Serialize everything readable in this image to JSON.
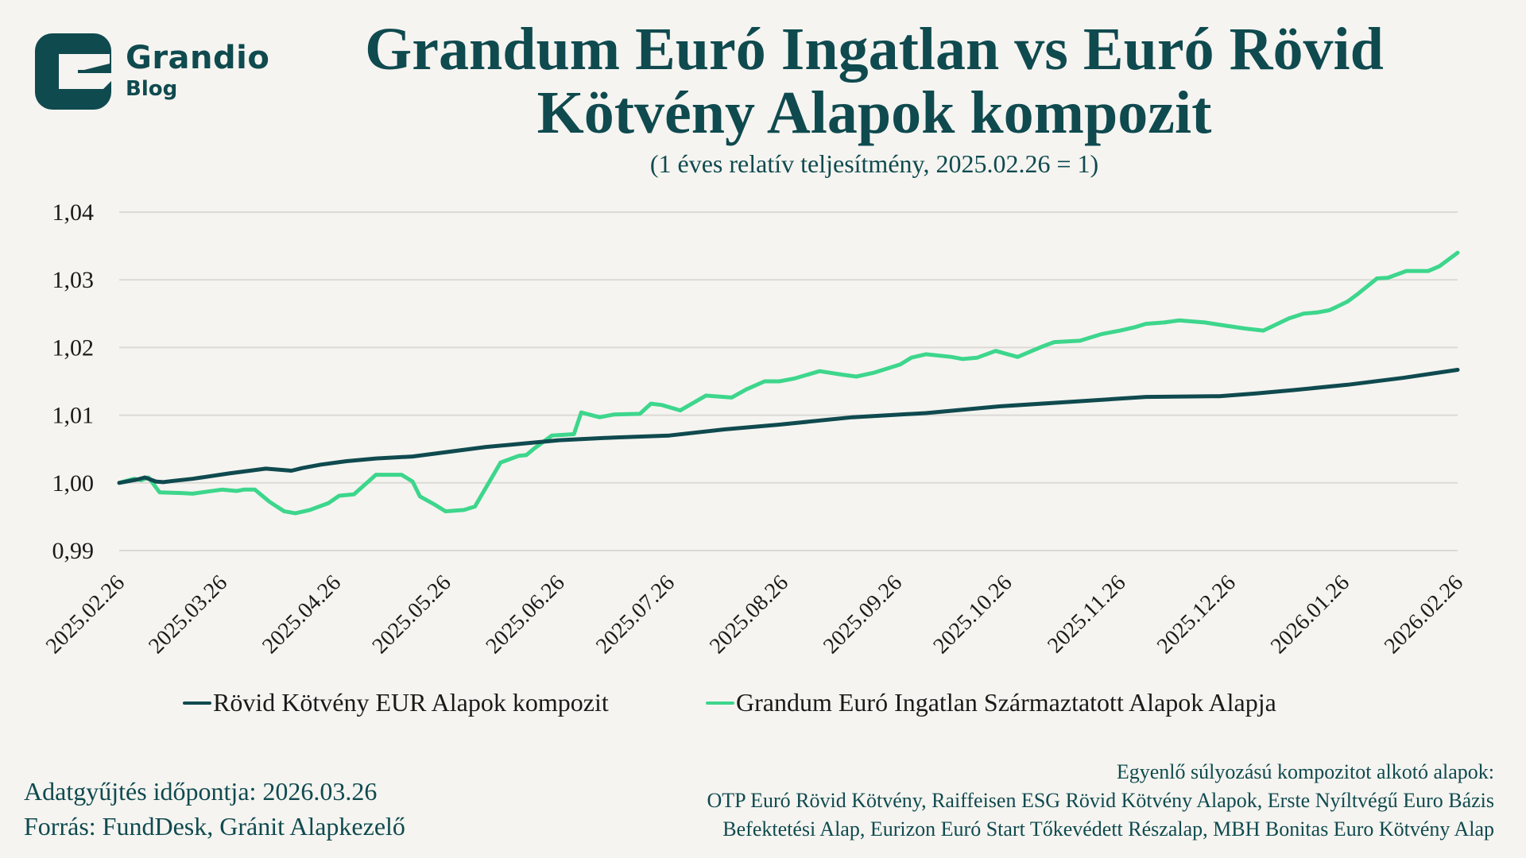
{
  "logo": {
    "name": "Grandio",
    "sub": "Blog",
    "icon": "grandio-g-logo"
  },
  "footer": {
    "collection_date": "Adatgyűjtés időpontja: 2026.03.26",
    "source": "Forrás: FundDesk, Gránit Alapkezelő",
    "composite_heading": "Egyenlő súlyozású kompozitot alkotó alapok:",
    "composite_line1": "OTP Euró Rövid Kötvény, Raiffeisen ESG Rövid Kötvény Alapok, Erste Nyíltvégű Euro Bázis",
    "composite_line2": "Befektetési Alap, Eurizon Euró Start Tőkevédett Részalap, MBH Bonitas Euro Kötvény Alap"
  },
  "chart_data": {
    "type": "line",
    "title_line1": "Grandum Euró Ingatlan vs Euró Rövid",
    "title_line2": "Kötvény Alapok kompozit",
    "subtitle": "(1 éves relatív teljesítmény, 2025.02.26 = 1)",
    "xlabel": "",
    "ylabel": "",
    "x_unit": "days since 2025.02.26",
    "x_range": [
      0,
      365
    ],
    "ylim": [
      0.99,
      1.04
    ],
    "yticks": [
      0.99,
      1.0,
      1.01,
      1.02,
      1.03,
      1.04
    ],
    "ytick_labels": [
      "0,99",
      "1,00",
      "1,01",
      "1,02",
      "1,03",
      "1,04"
    ],
    "xticks": [
      0,
      28,
      59,
      89,
      120,
      150,
      181,
      212,
      242,
      273,
      303,
      334,
      365
    ],
    "xtick_labels": [
      "2025.02.26",
      "2025.03.26",
      "2025.04.26",
      "2025.05.26",
      "2025.06.26",
      "2025.07.26",
      "2025.08.26",
      "2025.09.26",
      "2025.10.26",
      "2025.11.26",
      "2025.12.26",
      "2026.01.26",
      "2026.02.26"
    ],
    "grid": true,
    "legend_position": "bottom",
    "series": [
      {
        "name": "Rövid Kötvény EUR Alapok kompozit",
        "color": "#0f4a4f",
        "x": [
          0,
          5,
          7,
          8,
          10,
          12,
          15,
          20,
          30,
          40,
          47,
          50,
          55,
          62,
          70,
          80,
          90,
          100,
          110,
          120,
          135,
          150,
          165,
          180,
          200,
          220,
          240,
          260,
          280,
          300,
          310,
          320,
          335,
          350,
          365
        ],
        "values": [
          1.0,
          1.0005,
          1.0008,
          1.0006,
          1.0002,
          1.0001,
          1.0003,
          1.0006,
          1.0014,
          1.0021,
          1.0018,
          1.0022,
          1.0027,
          1.0032,
          1.0036,
          1.0039,
          1.0046,
          1.0053,
          1.0058,
          1.0063,
          1.0067,
          1.007,
          1.0079,
          1.0086,
          1.0097,
          1.0103,
          1.0113,
          1.012,
          1.0127,
          1.0128,
          1.0132,
          1.0137,
          1.0145,
          1.0155,
          1.0167
        ]
      },
      {
        "name": "Grandum Euró Ingatlan Származtatott Alapok Alapja",
        "color": "#3dd68c",
        "x": [
          0,
          4,
          6,
          8,
          11,
          17,
          20,
          28,
          32,
          34,
          37,
          41,
          45,
          48,
          52,
          57,
          60,
          64,
          70,
          77,
          80,
          82,
          86,
          89,
          94,
          97,
          104,
          109,
          111,
          113,
          118,
          124,
          126,
          131,
          135,
          142,
          145,
          148,
          153,
          160,
          167,
          171,
          176,
          180,
          184,
          191,
          197,
          201,
          206,
          213,
          216,
          220,
          227,
          230,
          234,
          239,
          245,
          248,
          252,
          255,
          262,
          268,
          273,
          277,
          280,
          285,
          289,
          296,
          302,
          307,
          312,
          319,
          323,
          327,
          330,
          332,
          335,
          338,
          343,
          346,
          351,
          357,
          360,
          365
        ],
        "values": [
          1.0,
          1.0006,
          1.0004,
          1.0008,
          0.9986,
          0.9985,
          0.9984,
          0.999,
          0.9988,
          0.999,
          0.999,
          0.9972,
          0.9958,
          0.9955,
          0.996,
          0.997,
          0.9981,
          0.9983,
          1.0012,
          1.0012,
          1.0002,
          0.998,
          0.9968,
          0.9958,
          0.996,
          0.9965,
          1.003,
          1.004,
          1.0041,
          1.005,
          1.007,
          1.0072,
          1.0104,
          1.0097,
          1.0101,
          1.0102,
          1.0117,
          1.0115,
          1.0107,
          1.0129,
          1.0126,
          1.0138,
          1.015,
          1.015,
          1.0154,
          1.0165,
          1.016,
          1.0157,
          1.0163,
          1.0175,
          1.0185,
          1.019,
          1.0186,
          1.0183,
          1.0185,
          1.0195,
          1.0186,
          1.0193,
          1.0202,
          1.0208,
          1.021,
          1.022,
          1.0225,
          1.023,
          1.0235,
          1.0237,
          1.024,
          1.0237,
          1.0232,
          1.0228,
          1.0225,
          1.0243,
          1.025,
          1.0252,
          1.0255,
          1.026,
          1.0268,
          1.028,
          1.0302,
          1.0303,
          1.0313,
          1.0313,
          1.032,
          1.034
        ]
      }
    ]
  }
}
